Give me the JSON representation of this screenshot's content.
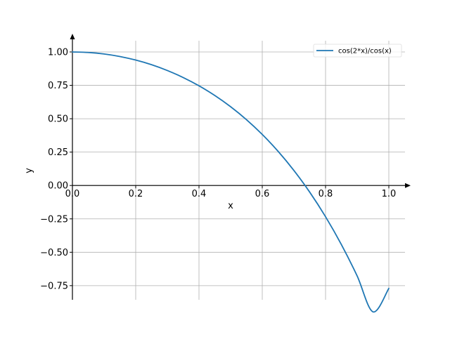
{
  "chart_data": {
    "type": "line",
    "title": "",
    "xlabel": "x",
    "ylabel": "y",
    "xlim": [
      0,
      1.05
    ],
    "ylim": [
      -0.86,
      1.1
    ],
    "xticks": [
      0.0,
      0.2,
      0.4,
      0.6,
      0.8,
      1.0
    ],
    "xtick_labels": [
      "0.0",
      "0.2",
      "0.4",
      "0.6",
      "0.8",
      "1.0"
    ],
    "yticks": [
      -0.75,
      -0.5,
      -0.25,
      0.0,
      0.25,
      0.5,
      0.75,
      1.0
    ],
    "ytick_labels": [
      "−0.75",
      "−0.50",
      "−0.25",
      "0.00",
      "0.25",
      "0.50",
      "0.75",
      "1.00"
    ],
    "grid": true,
    "legend_position": "top-right",
    "series": [
      {
        "name": "cos(2*x)/cos(x)",
        "color": "#1f77b4",
        "x": [
          0.0,
          0.05,
          0.1,
          0.15,
          0.2,
          0.25,
          0.3,
          0.35,
          0.4,
          0.45,
          0.5,
          0.55,
          0.6,
          0.65,
          0.7,
          0.75,
          0.8,
          0.85,
          0.9,
          0.95,
          1.0
        ],
        "y": [
          1.0,
          0.9962,
          0.985,
          0.9661,
          0.9393,
          0.9045,
          0.8611,
          0.8087,
          0.7466,
          0.6739,
          0.5898,
          0.493,
          0.3822,
          0.256,
          0.1126,
          -0.0499,
          -0.2338,
          -0.442,
          -0.6781,
          -0.9462,
          -0.7702
        ]
      }
    ]
  }
}
